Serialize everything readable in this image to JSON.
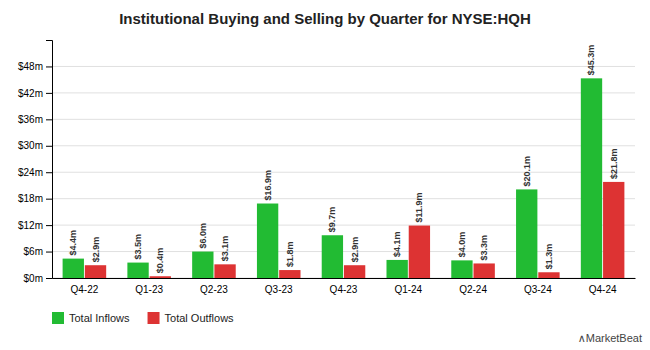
{
  "chart_data": {
    "type": "bar",
    "title": "Institutional Buying and Selling by Quarter for NYSE:HQH",
    "categories": [
      "Q4-22",
      "Q1-23",
      "Q2-23",
      "Q3-23",
      "Q4-23",
      "Q1-24",
      "Q2-24",
      "Q3-24",
      "Q4-24"
    ],
    "series": [
      {
        "name": "Total Inflows",
        "color": "#22bb33",
        "values": [
          4.4,
          3.5,
          6.0,
          16.9,
          9.7,
          4.1,
          4.0,
          20.1,
          45.3
        ],
        "value_labels": [
          "$4.4m",
          "$3.5m",
          "$6.0m",
          "$16.9m",
          "$9.7m",
          "$4.1m",
          "$4.0m",
          "$20.1m",
          "$45.3m"
        ]
      },
      {
        "name": "Total Outflows",
        "color": "#dd3333",
        "values": [
          2.9,
          0.4,
          3.1,
          1.8,
          2.9,
          11.9,
          3.3,
          1.3,
          21.8
        ],
        "value_labels": [
          "$2.9m",
          "$0.4m",
          "$3.1m",
          "$1.8m",
          "$2.9m",
          "$11.9m",
          "$3.3m",
          "$1.3m",
          "$21.8m"
        ]
      }
    ],
    "ylim": [
      0,
      54
    ],
    "yticks": [
      {
        "value": 0,
        "label": "$0m"
      },
      {
        "value": 6,
        "label": "$6m"
      },
      {
        "value": 12,
        "label": "$12m"
      },
      {
        "value": 18,
        "label": "$18m"
      },
      {
        "value": 24,
        "label": "$24m"
      },
      {
        "value": 30,
        "label": "$30m"
      },
      {
        "value": 36,
        "label": "$36m"
      },
      {
        "value": 42,
        "label": "$42m"
      },
      {
        "value": 48,
        "label": "$48m"
      }
    ],
    "grid": true,
    "legend": "bottom",
    "data_labels": true,
    "annotations": [
      "∧MarketBeat"
    ]
  }
}
